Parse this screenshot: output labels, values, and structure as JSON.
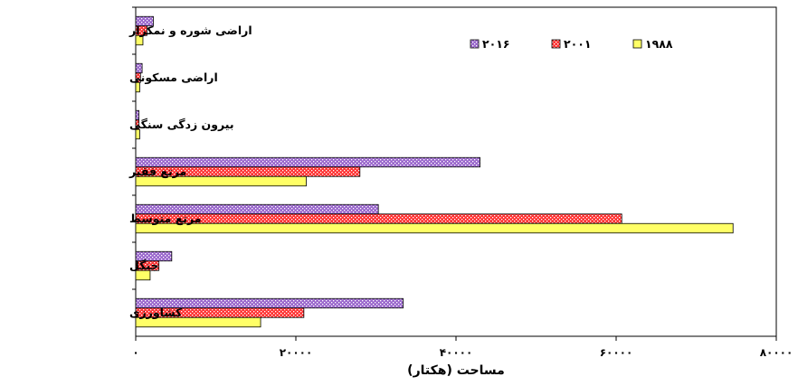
{
  "chart_data": {
    "type": "bar",
    "orientation": "horizontal",
    "title": "",
    "xlabel": "مساحت (هکتار)",
    "ylabel": "",
    "xlim": [
      0,
      80000
    ],
    "xticks": [
      0,
      20000,
      40000,
      60000,
      80000
    ],
    "xtick_labels": [
      "۰",
      "۲۰۰۰۰",
      "۴۰۰۰۰",
      "۶۰۰۰۰",
      "۸۰۰۰۰"
    ],
    "grid": false,
    "legend_position": "top-right",
    "categories": [
      "اراضی شوره و نمکزار",
      "اراضی مسکونی",
      "بیرون زدگی سنگی",
      "مرتع فقیر",
      "مرتع متوسط",
      "جنگل",
      "کشاورزی"
    ],
    "series": [
      {
        "name": "۲۰۱۶",
        "color": "#9966cc",
        "pattern": "dots-purple",
        "values": [
          2200,
          800,
          400,
          43000,
          30300,
          4500,
          33400
        ]
      },
      {
        "name": "۲۰۰۱",
        "color": "#ff3333",
        "pattern": "dots-red",
        "values": [
          1400,
          600,
          400,
          28000,
          60700,
          2900,
          21000
        ]
      },
      {
        "name": "۱۹۸۸",
        "color": "#ffff66",
        "pattern": "solid-yellow",
        "values": [
          900,
          500,
          500,
          21300,
          74600,
          1800,
          15600
        ]
      }
    ]
  }
}
